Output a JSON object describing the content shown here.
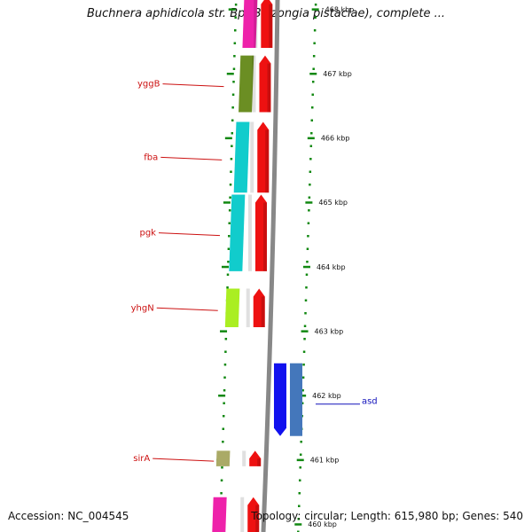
{
  "title": "Buchnera aphidicola str. Bp (Baizongia pistaciae), complete ...",
  "footer": {
    "accession": "Accession: NC_004545",
    "topology": "Topology: circular; Length: 615,980 bp; Genes: 540"
  },
  "colors": {
    "backbone": "#888888",
    "tick": "#118811",
    "forward_label": "#cc1111",
    "reverse_label": "#1111bb"
  },
  "scale": {
    "unit": "kbp",
    "ticks": [
      {
        "label": "468 kbp",
        "value": 468
      },
      {
        "label": "467 kbp",
        "value": 467
      },
      {
        "label": "466 kbp",
        "value": 466
      },
      {
        "label": "465 kbp",
        "value": 465
      },
      {
        "label": "464 kbp",
        "value": 464
      },
      {
        "label": "463 kbp",
        "value": 463
      },
      {
        "label": "462 kbp",
        "value": 462
      },
      {
        "label": "461 kbp",
        "value": 461
      },
      {
        "label": "460 kbp",
        "value": 460
      }
    ]
  },
  "features": [
    {
      "name": "",
      "strand": "forward",
      "start": 467.4,
      "end": 468.2,
      "color": "#ee22aa"
    },
    {
      "name": "yggB",
      "strand": "forward",
      "start": 466.4,
      "end": 467.28,
      "color": "#6b8e23"
    },
    {
      "name": "fba",
      "strand": "forward",
      "start": 465.15,
      "end": 466.25,
      "color": "#11cccc"
    },
    {
      "name": "pgk",
      "strand": "forward",
      "start": 463.93,
      "end": 465.12,
      "color": "#11cccc"
    },
    {
      "name": "yhgN",
      "strand": "forward",
      "start": 463.06,
      "end": 463.66,
      "color": "#aaee22"
    },
    {
      "name": "asd",
      "strand": "reverse",
      "start": 461.37,
      "end": 462.5,
      "color": "#1111ee"
    },
    {
      "name": "sirA",
      "strand": "forward",
      "start": 460.9,
      "end": 461.14,
      "color": "#aaaa66"
    },
    {
      "name": "",
      "strand": "forward",
      "start": 459.6,
      "end": 460.42,
      "color": "#ee22aa"
    }
  ]
}
